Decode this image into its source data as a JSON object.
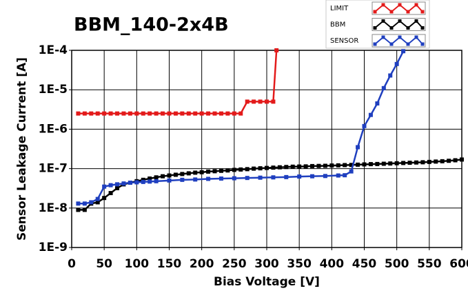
{
  "chart_data": {
    "type": "line",
    "title": "BBM_140-2x4B",
    "x_label": "Bias Voltage [V]",
    "y_label": "Sensor Leakage Current [A]",
    "log_y": true,
    "grid": true,
    "legend": "upper right",
    "xlim": [
      0,
      600
    ],
    "xticks": [
      0,
      50,
      100,
      150,
      200,
      250,
      300,
      350,
      400,
      450,
      500,
      550,
      600
    ],
    "ylim": [
      1e-09,
      0.0001
    ],
    "yticks": [
      {
        "value": 1e-09,
        "label": "1E-9"
      },
      {
        "value": 1e-08,
        "label": "1E-8"
      },
      {
        "value": 1e-07,
        "label": "1E-7"
      },
      {
        "value": 1e-06,
        "label": "1E-6"
      },
      {
        "value": 1e-05,
        "label": "1E-5"
      },
      {
        "value": 0.0001,
        "label": "1E-4"
      }
    ],
    "series": [
      {
        "name": "LIMIT",
        "color": "#e31a1a",
        "x": [
          10,
          20,
          30,
          40,
          50,
          60,
          70,
          80,
          90,
          100,
          110,
          120,
          130,
          140,
          150,
          160,
          170,
          180,
          190,
          200,
          210,
          220,
          230,
          240,
          250,
          260,
          270,
          280,
          290,
          300,
          310,
          315
        ],
        "values": [
          2.5e-06,
          2.5e-06,
          2.5e-06,
          2.5e-06,
          2.5e-06,
          2.5e-06,
          2.5e-06,
          2.5e-06,
          2.5e-06,
          2.5e-06,
          2.5e-06,
          2.5e-06,
          2.5e-06,
          2.5e-06,
          2.5e-06,
          2.5e-06,
          2.5e-06,
          2.5e-06,
          2.5e-06,
          2.5e-06,
          2.5e-06,
          2.5e-06,
          2.5e-06,
          2.5e-06,
          2.5e-06,
          2.5e-06,
          5e-06,
          5e-06,
          5e-06,
          5e-06,
          5e-06,
          0.0001
        ]
      },
      {
        "name": "BBM",
        "color": "#000000",
        "x": [
          10,
          20,
          30,
          40,
          50,
          60,
          70,
          80,
          90,
          100,
          110,
          120,
          130,
          140,
          150,
          160,
          170,
          180,
          190,
          200,
          210,
          220,
          230,
          240,
          250,
          260,
          270,
          280,
          290,
          300,
          310,
          320,
          330,
          340,
          350,
          360,
          370,
          380,
          390,
          400,
          410,
          420,
          430,
          440,
          450,
          460,
          470,
          480,
          490,
          500,
          510,
          520,
          530,
          540,
          550,
          560,
          570,
          580,
          590,
          600
        ],
        "values": [
          9e-09,
          9e-09,
          1.3e-08,
          1.4e-08,
          1.8e-08,
          2.4e-08,
          3.2e-08,
          4e-08,
          4.4e-08,
          4.8e-08,
          5.2e-08,
          5.6e-08,
          6e-08,
          6.4e-08,
          6.7e-08,
          7e-08,
          7.3e-08,
          7.6e-08,
          7.9e-08,
          8.1e-08,
          8.4e-08,
          8.6e-08,
          8.8e-08,
          9e-08,
          9.3e-08,
          9.5e-08,
          9.7e-08,
          1e-07,
          1.02e-07,
          1.04e-07,
          1.06e-07,
          1.08e-07,
          1.1e-07,
          1.12e-07,
          1.13e-07,
          1.14e-07,
          1.16e-07,
          1.17e-07,
          1.18e-07,
          1.2e-07,
          1.21e-07,
          1.23e-07,
          1.24e-07,
          1.26e-07,
          1.28e-07,
          1.3e-07,
          1.31e-07,
          1.33e-07,
          1.35e-07,
          1.37e-07,
          1.39e-07,
          1.41e-07,
          1.43e-07,
          1.45e-07,
          1.48e-07,
          1.51e-07,
          1.54e-07,
          1.58e-07,
          1.63e-07,
          1.7e-07
        ]
      },
      {
        "name": "SENSOR",
        "color": "#1f3fbf",
        "x": [
          10,
          20,
          30,
          40,
          50,
          60,
          70,
          80,
          90,
          100,
          110,
          120,
          130,
          150,
          170,
          190,
          210,
          230,
          250,
          270,
          290,
          310,
          330,
          350,
          370,
          390,
          410,
          420,
          430,
          440,
          450,
          460,
          470,
          480,
          490,
          500,
          510
        ],
        "values": [
          1.3e-08,
          1.3e-08,
          1.4e-08,
          1.7e-08,
          3.5e-08,
          3.8e-08,
          4e-08,
          4.2e-08,
          4.4e-08,
          4.5e-08,
          4.6e-08,
          4.7e-08,
          4.8e-08,
          5e-08,
          5.2e-08,
          5.3e-08,
          5.5e-08,
          5.6e-08,
          5.7e-08,
          5.8e-08,
          5.9e-08,
          6e-08,
          6.1e-08,
          6.3e-08,
          6.4e-08,
          6.5e-08,
          6.7e-08,
          6.8e-08,
          8.5e-08,
          3.5e-07,
          1.2e-06,
          2.3e-06,
          4.5e-06,
          1.1e-05,
          2.3e-05,
          4.5e-05,
          9.5e-05
        ]
      }
    ]
  }
}
